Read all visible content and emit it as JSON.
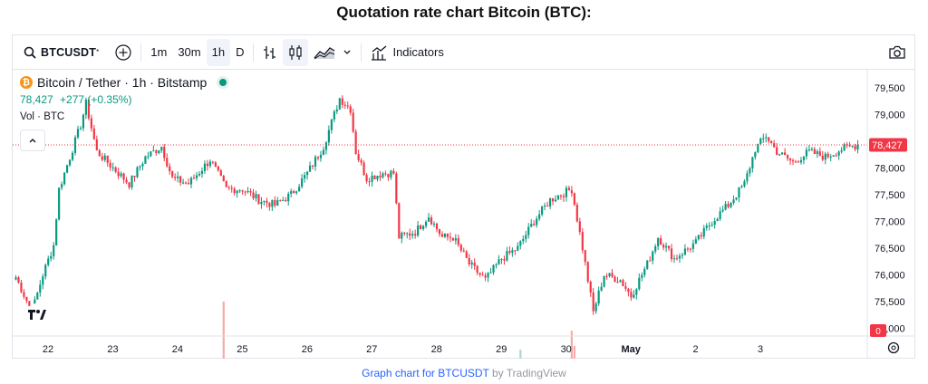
{
  "page": {
    "title": "Quotation rate chart Bitcoin (BTC):"
  },
  "toolbar": {
    "symbol": "BTCUSDT",
    "intervals": [
      "1m",
      "30m",
      "1h",
      "D"
    ],
    "active_interval": "1h",
    "indicators_label": "Indicators"
  },
  "legend": {
    "name": "Bitcoin / Tether · 1h · Bitstamp",
    "btc_glyph": "₿",
    "price": "78,427",
    "change": "+277 (+0.35%)",
    "volume": "Vol · BTC"
  },
  "colors": {
    "up": "#089981",
    "down": "#f23645",
    "up_vol": "#a3d9cf",
    "down_vol": "#f7a9a7"
  },
  "footer": {
    "link": "Graph chart for BTCUSDT",
    "by": "by TradingView"
  },
  "chart_data": {
    "type": "candlestick",
    "title": "Quotation rate chart Bitcoin (BTC):",
    "y_ticks": [
      75000,
      75500,
      76000,
      76500,
      77000,
      77500,
      78000,
      78500,
      79000,
      79500
    ],
    "y_tick_labels": [
      "75,000",
      "75,500",
      "76,000",
      "76,500",
      "77,000",
      "77,500",
      "78,000",
      "78,500",
      "79,000",
      "79,500"
    ],
    "ylim": [
      74750,
      79750
    ],
    "x_labels": [
      "22",
      "23",
      "24",
      "25",
      "26",
      "27",
      "28",
      "29",
      "30",
      "May",
      "2",
      "3"
    ],
    "x_label_start_index": [
      0,
      24,
      48,
      72,
      96,
      120,
      144,
      168,
      192,
      216,
      240,
      264
    ],
    "last_price": 78427,
    "last_price_label": "78,427",
    "volume_badge": "0",
    "anchors": [
      [
        0,
        75950
      ],
      [
        6,
        75300
      ],
      [
        10,
        76000
      ],
      [
        14,
        76550
      ],
      [
        16,
        77600
      ],
      [
        20,
        78200
      ],
      [
        24,
        78800
      ],
      [
        26,
        79200
      ],
      [
        30,
        78300
      ],
      [
        36,
        78000
      ],
      [
        42,
        77700
      ],
      [
        48,
        78200
      ],
      [
        54,
        78400
      ],
      [
        58,
        77800
      ],
      [
        64,
        77700
      ],
      [
        72,
        78150
      ],
      [
        78,
        77600
      ],
      [
        84,
        77600
      ],
      [
        90,
        77400
      ],
      [
        96,
        77300
      ],
      [
        102,
        77500
      ],
      [
        108,
        77900
      ],
      [
        114,
        78400
      ],
      [
        120,
        79300
      ],
      [
        124,
        79100
      ],
      [
        126,
        78300
      ],
      [
        130,
        77800
      ],
      [
        136,
        77900
      ],
      [
        140,
        77900
      ],
      [
        142,
        76700
      ],
      [
        148,
        76800
      ],
      [
        153,
        77100
      ],
      [
        158,
        76700
      ],
      [
        162,
        76700
      ],
      [
        168,
        76200
      ],
      [
        174,
        75900
      ],
      [
        180,
        76300
      ],
      [
        186,
        76500
      ],
      [
        192,
        77000
      ],
      [
        198,
        77400
      ],
      [
        206,
        77600
      ],
      [
        210,
        76500
      ],
      [
        214,
        75300
      ],
      [
        218,
        76000
      ],
      [
        224,
        75900
      ],
      [
        228,
        75600
      ],
      [
        234,
        76200
      ],
      [
        238,
        76700
      ],
      [
        244,
        76300
      ],
      [
        252,
        76600
      ],
      [
        258,
        77000
      ],
      [
        264,
        77300
      ],
      [
        270,
        77700
      ],
      [
        274,
        78350
      ],
      [
        278,
        78600
      ],
      [
        282,
        78300
      ],
      [
        288,
        78100
      ],
      [
        294,
        78300
      ],
      [
        300,
        78200
      ],
      [
        306,
        78350
      ],
      [
        312,
        78427
      ]
    ],
    "volume_spikes": [
      [
        77,
        0.55
      ],
      [
        187,
        0.17
      ],
      [
        206,
        0.32
      ],
      [
        207,
        0.2
      ],
      [
        214,
        0.1
      ]
    ]
  }
}
